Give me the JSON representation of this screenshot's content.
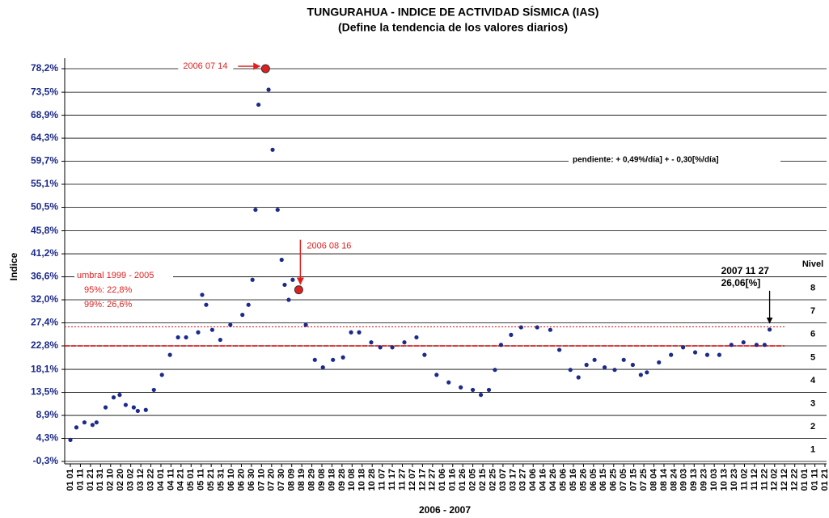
{
  "chart_data": {
    "type": "scatter",
    "title": "TUNGURAHUA - INDICE DE ACTIVIDAD SÍSMICA (IAS)",
    "subtitle": "(Define la tendencia de los valores diarios)",
    "y_label": "Indice",
    "x_label": "2006 - 2007",
    "xlim": [
      0,
      750
    ],
    "xticks": [
      {
        "value": 0,
        "label": "01 01"
      },
      {
        "value": 10,
        "label": "01 11"
      },
      {
        "value": 20,
        "label": "01 21"
      },
      {
        "value": 30,
        "label": "01 31"
      },
      {
        "value": 40,
        "label": "02 10"
      },
      {
        "value": 50,
        "label": "02 20"
      },
      {
        "value": 60,
        "label": "03 02"
      },
      {
        "value": 70,
        "label": "03 12"
      },
      {
        "value": 80,
        "label": "03 22"
      },
      {
        "value": 90,
        "label": "04 01"
      },
      {
        "value": 100,
        "label": "04 11"
      },
      {
        "value": 110,
        "label": "04 21"
      },
      {
        "value": 120,
        "label": "05 01"
      },
      {
        "value": 130,
        "label": "05 11"
      },
      {
        "value": 140,
        "label": "05 21"
      },
      {
        "value": 150,
        "label": "05 31"
      },
      {
        "value": 160,
        "label": "06 10"
      },
      {
        "value": 170,
        "label": "06 20"
      },
      {
        "value": 180,
        "label": "06 30"
      },
      {
        "value": 190,
        "label": "07 10"
      },
      {
        "value": 200,
        "label": "07 20"
      },
      {
        "value": 210,
        "label": "07 30"
      },
      {
        "value": 220,
        "label": "08 09"
      },
      {
        "value": 230,
        "label": "08 19"
      },
      {
        "value": 240,
        "label": "08 29"
      },
      {
        "value": 250,
        "label": "09 08"
      },
      {
        "value": 260,
        "label": "09 18"
      },
      {
        "value": 270,
        "label": "09 28"
      },
      {
        "value": 280,
        "label": "10 08"
      },
      {
        "value": 290,
        "label": "10 18"
      },
      {
        "value": 300,
        "label": "10 28"
      },
      {
        "value": 310,
        "label": "11 07"
      },
      {
        "value": 320,
        "label": "11 17"
      },
      {
        "value": 330,
        "label": "11 27"
      },
      {
        "value": 340,
        "label": "12 07"
      },
      {
        "value": 350,
        "label": "12 17"
      },
      {
        "value": 360,
        "label": "12 27"
      },
      {
        "value": 370,
        "label": "01 06"
      },
      {
        "value": 380,
        "label": "01 16"
      },
      {
        "value": 390,
        "label": "01 26"
      },
      {
        "value": 400,
        "label": "02 05"
      },
      {
        "value": 410,
        "label": "02 15"
      },
      {
        "value": 420,
        "label": "02 25"
      },
      {
        "value": 430,
        "label": "03 07"
      },
      {
        "value": 440,
        "label": "03 17"
      },
      {
        "value": 450,
        "label": "03 27"
      },
      {
        "value": 460,
        "label": "04 06"
      },
      {
        "value": 470,
        "label": "04 16"
      },
      {
        "value": 480,
        "label": "04 26"
      },
      {
        "value": 490,
        "label": "05 06"
      },
      {
        "value": 500,
        "label": "05 16"
      },
      {
        "value": 510,
        "label": "05 26"
      },
      {
        "value": 520,
        "label": "06 05"
      },
      {
        "value": 530,
        "label": "06 15"
      },
      {
        "value": 540,
        "label": "06 25"
      },
      {
        "value": 550,
        "label": "07 05"
      },
      {
        "value": 560,
        "label": "07 15"
      },
      {
        "value": 570,
        "label": "07 25"
      },
      {
        "value": 580,
        "label": "08 04"
      },
      {
        "value": 590,
        "label": "08 14"
      },
      {
        "value": 600,
        "label": "08 24"
      },
      {
        "value": 610,
        "label": "09 03"
      },
      {
        "value": 620,
        "label": "09 13"
      },
      {
        "value": 630,
        "label": "09 23"
      },
      {
        "value": 640,
        "label": "10 03"
      },
      {
        "value": 650,
        "label": "10 13"
      },
      {
        "value": 660,
        "label": "10 23"
      },
      {
        "value": 670,
        "label": "11 02"
      },
      {
        "value": 680,
        "label": "11 12"
      },
      {
        "value": 690,
        "label": "11 22"
      },
      {
        "value": 700,
        "label": "12 02"
      },
      {
        "value": 710,
        "label": "12 12"
      },
      {
        "value": 720,
        "label": "12 22"
      },
      {
        "value": 730,
        "label": "01 01"
      },
      {
        "value": 740,
        "label": "01 11"
      },
      {
        "value": 750,
        "label": "01 21"
      }
    ],
    "ylim": [
      -0.3,
      80.3
    ],
    "yticks": [
      {
        "value": -0.3,
        "label": "-0,3%"
      },
      {
        "value": 4.3,
        "label": "4,3%"
      },
      {
        "value": 8.9,
        "label": "8,9%"
      },
      {
        "value": 13.5,
        "label": "13,5%"
      },
      {
        "value": 18.1,
        "label": "18,1%"
      },
      {
        "value": 22.8,
        "label": "22,8%"
      },
      {
        "value": 27.4,
        "label": "27,4%"
      },
      {
        "value": 32.0,
        "label": "32,0%"
      },
      {
        "value": 36.6,
        "label": "36,6%"
      },
      {
        "value": 41.2,
        "label": "41,2%"
      },
      {
        "value": 45.8,
        "label": "45,8%"
      },
      {
        "value": 50.5,
        "label": "50,5%"
      },
      {
        "value": 55.1,
        "label": "55,1%"
      },
      {
        "value": 59.7,
        "label": "59,7%"
      },
      {
        "value": 64.3,
        "label": "64,3%"
      },
      {
        "value": 68.9,
        "label": "68,9%"
      },
      {
        "value": 73.5,
        "label": "73,5%"
      },
      {
        "value": 78.2,
        "label": "78,2%"
      }
    ],
    "grid": true,
    "color": "#1c2a8a",
    "x": [
      0,
      6,
      14,
      22,
      26,
      35,
      43,
      49,
      55,
      63,
      67,
      75,
      83,
      91,
      99,
      107,
      115,
      127,
      131,
      135,
      141,
      149,
      159,
      171,
      177,
      181,
      184,
      187,
      194,
      197,
      201,
      206,
      210,
      213,
      217,
      221,
      227,
      234,
      243,
      251,
      261,
      271,
      279,
      287,
      299,
      308,
      320,
      332,
      344,
      352,
      364,
      376,
      388,
      400,
      408,
      416,
      422,
      428,
      438,
      448,
      464,
      477,
      486,
      497,
      505,
      513,
      521,
      531,
      541,
      550,
      559,
      567,
      573,
      585,
      597,
      609,
      621,
      633,
      645,
      657,
      669,
      682,
      690,
      695
    ],
    "values": [
      4.0,
      6.5,
      7.5,
      7.0,
      7.5,
      10.5,
      12.5,
      13.0,
      11.0,
      10.5,
      9.8,
      10.0,
      14.0,
      17.0,
      21.0,
      24.5,
      24.5,
      25.5,
      33.0,
      31.0,
      26.0,
      24.0,
      27.0,
      29.0,
      31.0,
      36.0,
      50.0,
      71.0,
      78.2,
      74.0,
      62.0,
      50.0,
      40.0,
      35.0,
      32.0,
      36.0,
      34.0,
      27.0,
      20.0,
      18.5,
      20.0,
      20.5,
      25.5,
      25.5,
      23.5,
      22.5,
      22.5,
      23.5,
      24.5,
      21.0,
      17.0,
      15.5,
      14.5,
      14.0,
      13.0,
      14.0,
      18.0,
      23.0,
      25.0,
      26.5,
      26.5,
      26.0,
      22.0,
      18.0,
      16.5,
      19.0,
      20.0,
      18.5,
      18.0,
      20.0,
      19.0,
      17.0,
      17.5,
      19.5,
      21.0,
      22.5,
      21.5,
      21.0,
      21.0,
      23.0,
      23.5,
      23.0,
      23.0,
      26.06
    ],
    "highlights": [
      {
        "label": "2006 07 14",
        "x": 194,
        "y": 78.2,
        "color": "#e02020"
      },
      {
        "label": "2006 08 16",
        "x": 227,
        "y": 34.0,
        "color": "#e02020"
      }
    ],
    "last_point": {
      "label": "2007 11 27",
      "value_label": "26,06[%]",
      "x": 695,
      "y": 26.06
    },
    "threshold_title": "umbral 1999 - 2005",
    "thresholds": [
      {
        "label": "95%:   22,8%",
        "value": 22.8,
        "color": "#e02020",
        "dash": "6 2"
      },
      {
        "label": "99%:   26,6%",
        "value": 26.6,
        "color": "#e02020",
        "dash": "2 2"
      }
    ],
    "slope_note": "pendiente: + 0,49%/día]  + - 0,30[%/día]",
    "level_title": "Nivel",
    "levels": [
      "1",
      "2",
      "3",
      "4",
      "5",
      "6",
      "7",
      "8"
    ]
  }
}
